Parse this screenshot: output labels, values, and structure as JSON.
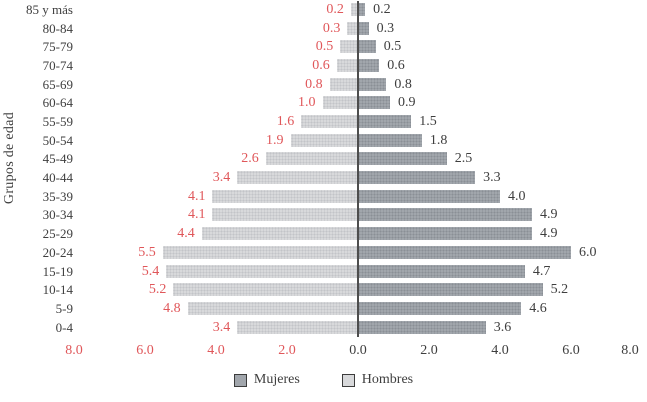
{
  "chart_data": {
    "type": "bar",
    "subtype": "population-pyramid",
    "title": "",
    "ylabel": "Grupos de edad",
    "xlabel": "",
    "grid": false,
    "legend_position": "bottom-center",
    "categories": [
      "85 y más",
      "80-84",
      "75-79",
      "70-74",
      "65-69",
      "60-64",
      "55-59",
      "50-54",
      "45-49",
      "40-44",
      "35-39",
      "30-34",
      "25-29",
      "20-24",
      "15-19",
      "10-14",
      "5-9",
      "0-4"
    ],
    "series": [
      {
        "name": "Mujeres",
        "side": "right",
        "bar_color": "#a1a6ac",
        "label_color": "#3e3e3e",
        "values": [
          0.2,
          0.3,
          0.5,
          0.6,
          0.8,
          0.9,
          1.5,
          1.8,
          2.5,
          3.3,
          4.0,
          4.9,
          4.9,
          6.0,
          4.7,
          5.2,
          4.6,
          3.6
        ]
      },
      {
        "name": "Hombres",
        "side": "left",
        "bar_color": "#d8d9db",
        "label_color": "#e0575a",
        "values": [
          0.2,
          0.3,
          0.5,
          0.6,
          0.8,
          1.0,
          1.6,
          1.9,
          2.6,
          3.4,
          4.1,
          4.1,
          4.4,
          5.5,
          5.4,
          5.2,
          4.8,
          3.4
        ]
      }
    ],
    "xlim": [
      -8,
      8
    ],
    "x_ticks_left": [
      "8.0",
      "6.0",
      "4.0",
      "2.0"
    ],
    "x_ticks_right": [
      "0.0",
      "2.0",
      "4.0",
      "6.0",
      "8.0"
    ],
    "x_tick_color_left": "#e0575a",
    "x_tick_color_right": "#3e3e3e",
    "axis_line_color": "#4d4d4d",
    "legend": [
      {
        "label": "Mujeres",
        "color": "#a1a6ac"
      },
      {
        "label": "Hombres",
        "color": "#d8d9db"
      }
    ],
    "value_format": "one-decimal"
  }
}
